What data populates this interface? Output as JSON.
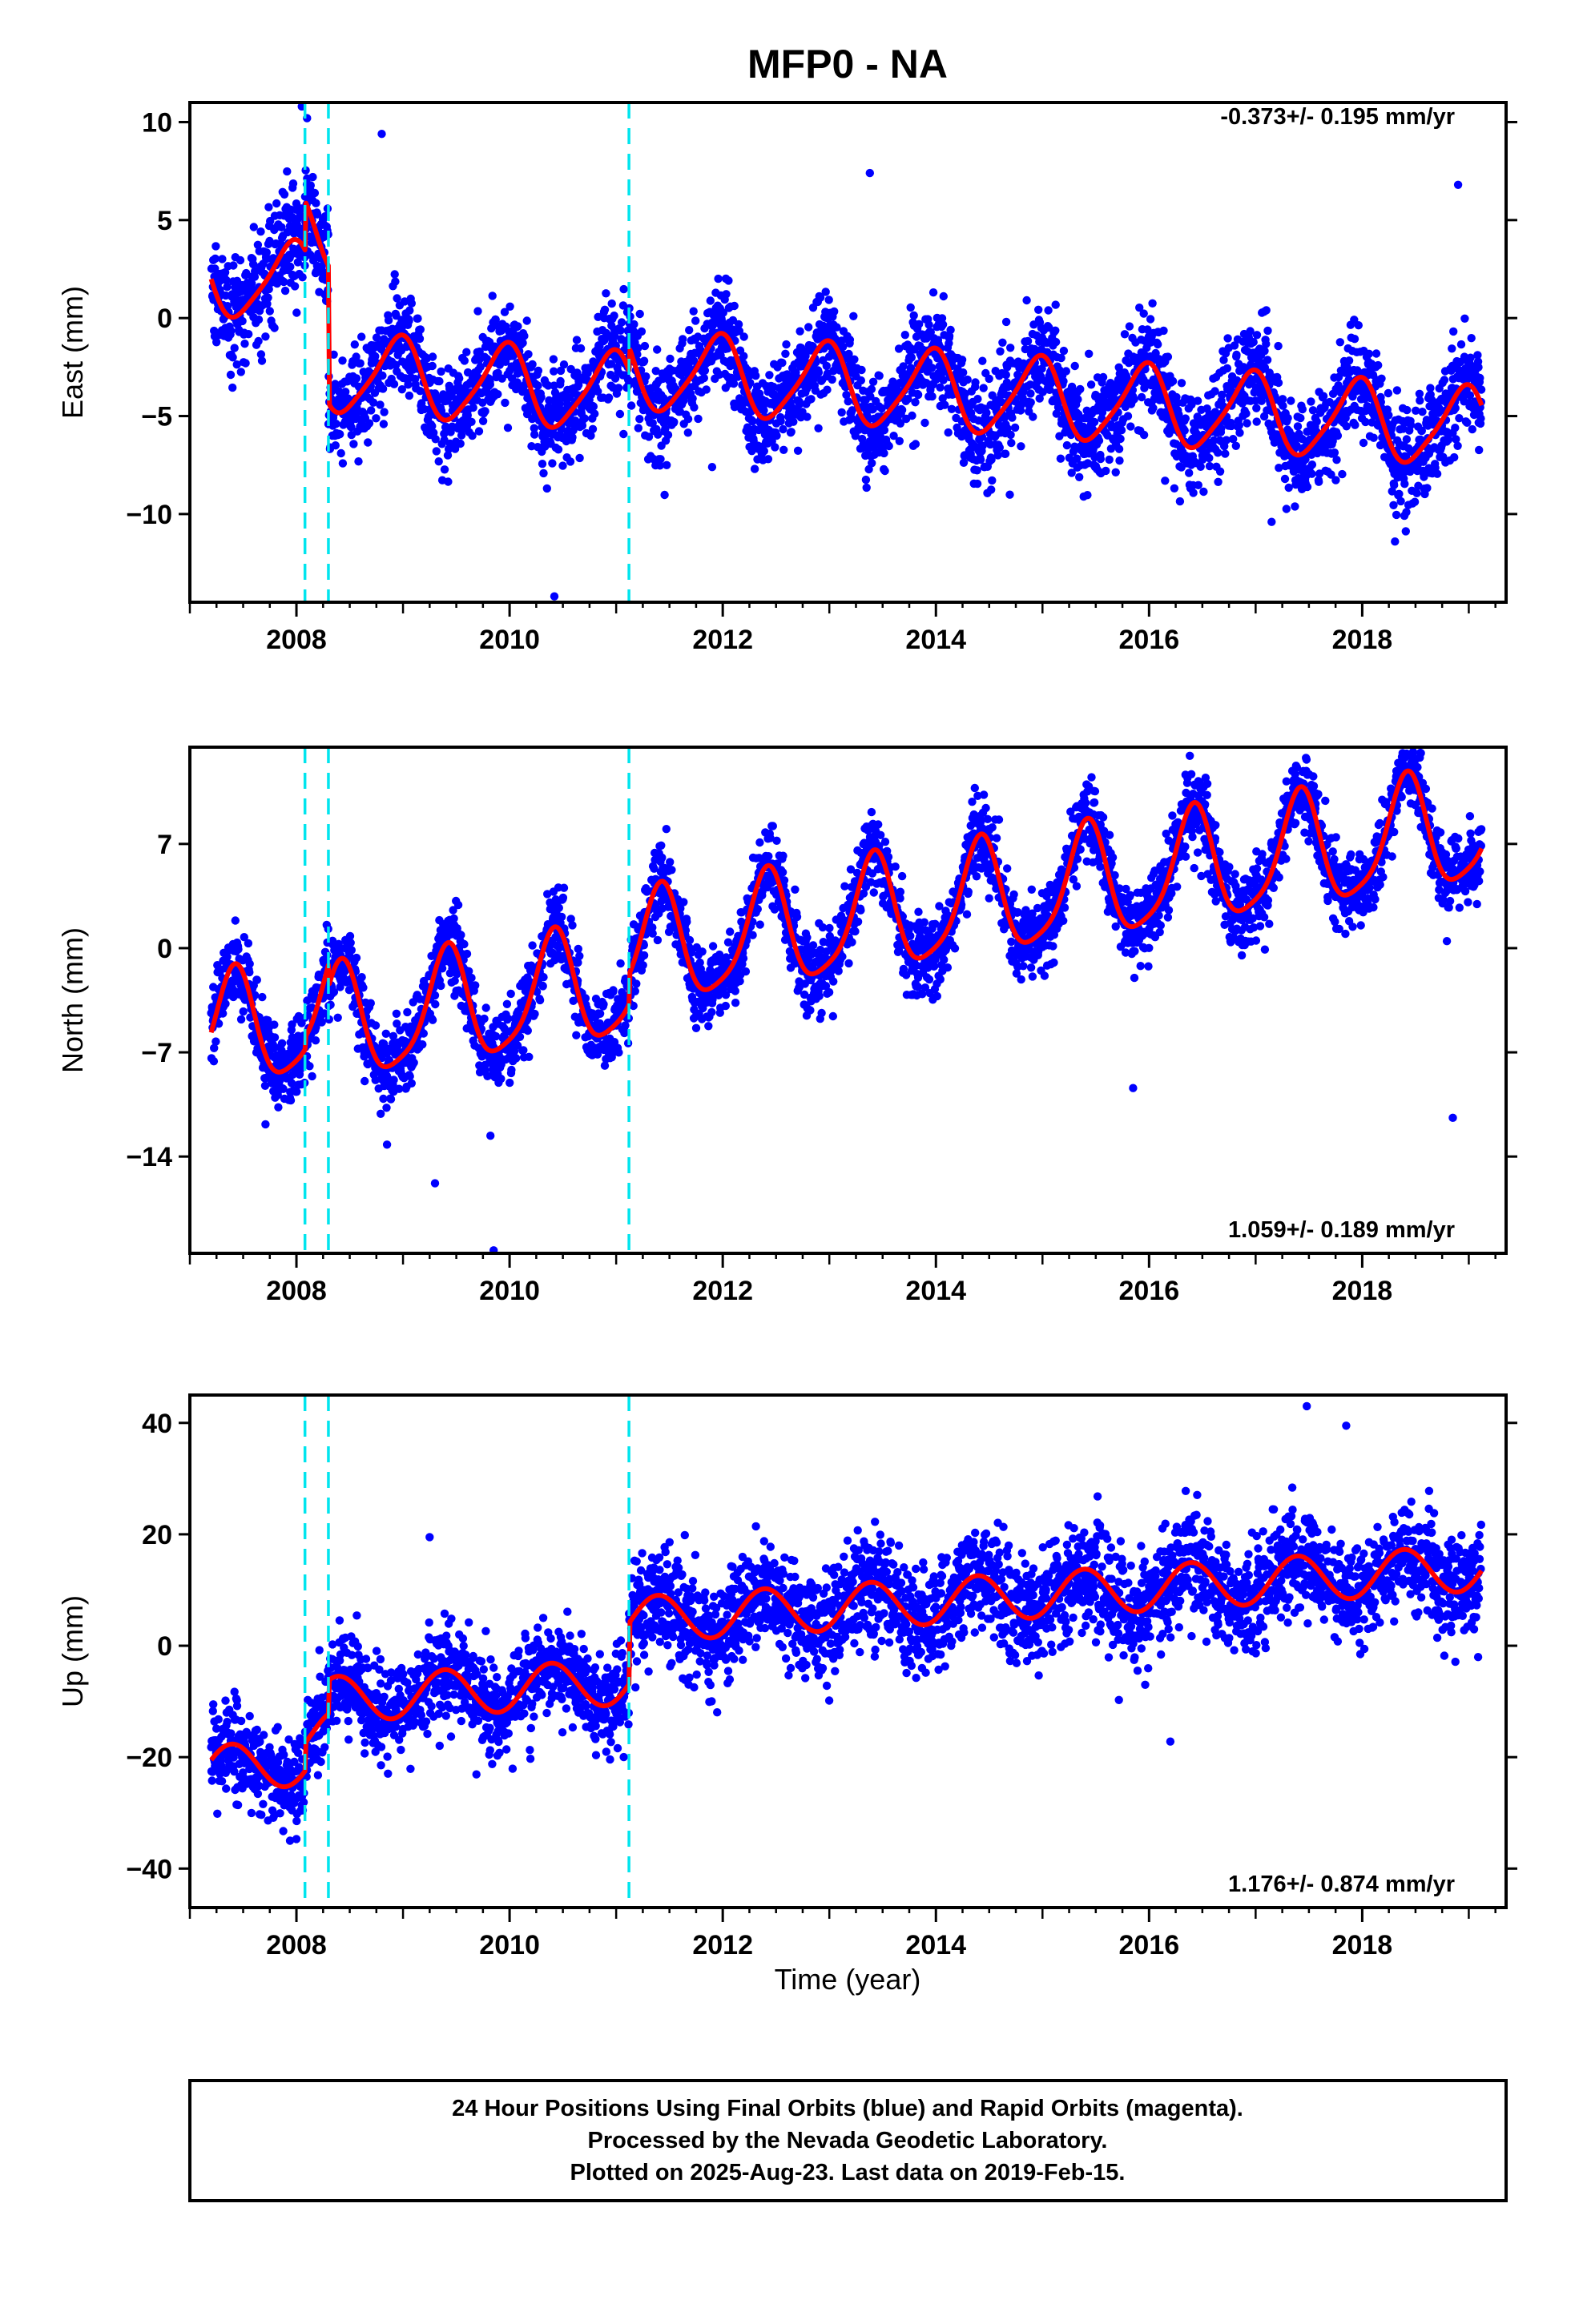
{
  "chart_data": {
    "title": "MFP0 - NA",
    "type": "scatter",
    "xlabel": "Time (year)",
    "xlim": [
      2007.0,
      2019.35
    ],
    "xticks": [
      2008,
      2010,
      2012,
      2014,
      2016,
      2018
    ],
    "xtick_labels": [
      "2008",
      "2010",
      "2012",
      "2014",
      "2016",
      "2018"
    ],
    "grid": false,
    "colors": {
      "points": "#0000ff",
      "model": "#ff0000",
      "offsets": "#00e5ee"
    },
    "data_start": 2007.2,
    "data_end": 2019.12,
    "offset_lines": [
      2008.08,
      2008.3,
      2011.12
    ],
    "panels": [
      {
        "name": "east",
        "ylabel": "East (mm)",
        "ylim": [
          -14.5,
          11.0
        ],
        "yticks": [
          10,
          5,
          0,
          -5,
          -10
        ],
        "ytick_labels": [
          "10",
          "5",
          "0",
          "−5",
          "−10"
        ],
        "rate": "-0.373+/- 0.195 mm/yr",
        "rate_position": "top-right",
        "model": {
          "rate": -0.373,
          "intercept": 2.1,
          "annual_cos": 1.9,
          "annual_sin": -0.6,
          "semiannual_cos": 0.3,
          "semiannual_sin": 0.2,
          "steps": [
            2.5,
            -7.0,
            1.2
          ]
        },
        "noise": 1.3,
        "outliers": [
          [
            2008.05,
            10.8
          ],
          [
            2008.1,
            10.2
          ],
          [
            2008.8,
            9.4
          ],
          [
            2010.42,
            -14.2
          ],
          [
            2011.3,
            -7.2
          ],
          [
            2011.9,
            -7.6
          ],
          [
            2012.3,
            -7.7
          ],
          [
            2013.38,
            7.4
          ],
          [
            2016.15,
            -8.3
          ],
          [
            2017.15,
            -10.4
          ],
          [
            2017.5,
            -7.8
          ],
          [
            2018.9,
            6.8
          ]
        ]
      },
      {
        "name": "north",
        "ylabel": "North (mm)",
        "ylim": [
          -20.5,
          13.5
        ],
        "yticks": [
          7,
          0,
          -7,
          -14
        ],
        "ytick_labels": [
          "7",
          "0",
          "−7",
          "−14"
        ],
        "rate": "1.059+/- 0.189 mm/yr",
        "rate_position": "bottom-right",
        "model": {
          "rate": 1.059,
          "intercept": -5.8,
          "annual_cos": -3.2,
          "annual_sin": 2.0,
          "semiannual_cos": 0.6,
          "semiannual_sin": -0.5,
          "steps": [
            0.8,
            -1.5,
            2.0
          ]
        },
        "noise": 1.3,
        "outliers": [
          [
            2008.85,
            -13.2
          ],
          [
            2009.3,
            -15.8
          ],
          [
            2009.82,
            -12.6
          ],
          [
            2009.85,
            -20.3
          ],
          [
            2015.85,
            -9.4
          ],
          [
            2018.85,
            -11.4
          ],
          [
            2018.55,
            13.1
          ]
        ]
      },
      {
        "name": "up",
        "ylabel": "Up (mm)",
        "ylim": [
          -47.0,
          45.0
        ],
        "yticks": [
          40,
          20,
          0,
          -20,
          -40
        ],
        "ytick_labels": [
          "40",
          "20",
          "0",
          "−20",
          "−40"
        ],
        "rate": "1.176+/- 0.874 mm/yr",
        "rate_position": "bottom-right",
        "model": {
          "rate": 1.176,
          "intercept": -22.0,
          "annual_cos": -3.2,
          "annual_sin": 2.6,
          "semiannual_cos": 0.0,
          "semiannual_sin": 0.0,
          "steps": [
            5.0,
            6.0,
            11.0
          ]
        },
        "noise": 4.8,
        "outliers": [
          [
            2009.25,
            19.5
          ],
          [
            2017.48,
            43.0
          ],
          [
            2017.85,
            39.5
          ],
          [
            2016.2,
            -17.2
          ]
        ]
      }
    ]
  },
  "footer": {
    "lines": [
      "24 Hour Positions Using Final Orbits (blue) and Rapid Orbits (magenta).",
      "Processed by the Nevada Geodetic Laboratory.",
      "Plotted on 2025-Aug-23. Last data on 2019-Feb-15."
    ]
  }
}
